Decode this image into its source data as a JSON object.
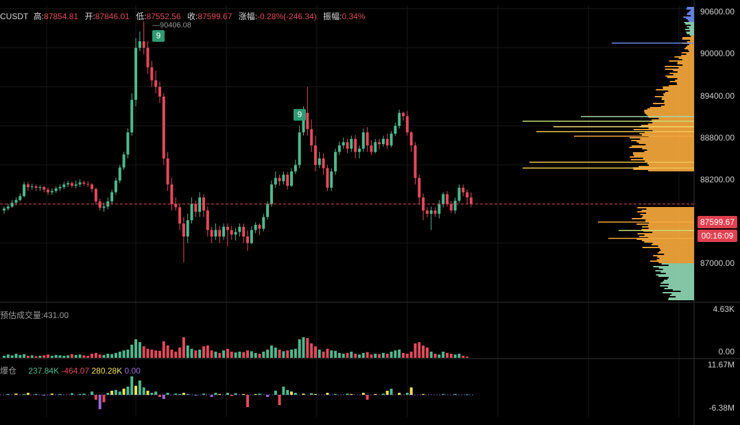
{
  "header": {
    "symbol": "CUSDT",
    "high_label": "高:",
    "high": "87854.81",
    "open_label": "开:",
    "open": "87846.01",
    "low_label": "低:",
    "low": "87552.56",
    "close_label": "收:",
    "close": "87599.67",
    "change_label": "涨幅:",
    "change": "-0.28%(-246.34)",
    "amplitude_label": "振幅:",
    "amplitude": "0.34%"
  },
  "price_axis": {
    "labels": [
      "90600.00",
      "90000.00",
      "89400.00",
      "88800.00",
      "88200.00",
      "87000.00"
    ],
    "current_price": "87599.67",
    "countdown": "00:16:09",
    "high_marker": "90406.08"
  },
  "td_badges": [
    "9",
    "9"
  ],
  "volume_pane": {
    "label": "预估成交量:431.00",
    "axis_top": "4.63K",
    "axis_bottom": "0.00"
  },
  "oi_pane": {
    "label": "爆仓",
    "v1": "237.84K",
    "v2": "-464.07",
    "v3": "280.28K",
    "v4": "0.00",
    "axis_top": "11.67M",
    "axis_bottom": "-6.38M"
  },
  "colors": {
    "up": "#4fb88f",
    "down": "#e24a5a",
    "profile": "#f5a73c",
    "tag": "#e0404f"
  },
  "chart_data": {
    "type": "candlestick",
    "ylim": [
      86100,
      90650
    ],
    "candles": [
      [
        87500,
        87530,
        87450,
        87560
      ],
      [
        87530,
        87560,
        87500,
        87600
      ],
      [
        87560,
        87620,
        87540,
        87660
      ],
      [
        87620,
        87660,
        87580,
        87700
      ],
      [
        87660,
        87720,
        87640,
        87760
      ],
      [
        87720,
        87900,
        87700,
        87940
      ],
      [
        87900,
        87860,
        87800,
        87940
      ],
      [
        87860,
        87870,
        87820,
        87910
      ],
      [
        87870,
        87850,
        87800,
        87900
      ],
      [
        87850,
        87860,
        87800,
        87890
      ],
      [
        87860,
        87820,
        87780,
        87880
      ],
      [
        87820,
        87780,
        87740,
        87850
      ],
      [
        87780,
        87800,
        87740,
        87840
      ],
      [
        87800,
        87840,
        87770,
        87870
      ],
      [
        87840,
        87860,
        87800,
        87900
      ],
      [
        87860,
        87900,
        87830,
        87940
      ],
      [
        87900,
        87920,
        87860,
        87960
      ],
      [
        87920,
        87880,
        87850,
        87950
      ],
      [
        87880,
        87900,
        87840,
        87960
      ],
      [
        87900,
        87930,
        87860,
        87980
      ],
      [
        87930,
        87910,
        87880,
        87960
      ],
      [
        87910,
        87900,
        87860,
        87950
      ],
      [
        87900,
        87830,
        87780,
        87920
      ],
      [
        87830,
        87640,
        87600,
        87850
      ],
      [
        87640,
        87540,
        87500,
        87680
      ],
      [
        87540,
        87560,
        87480,
        87620
      ],
      [
        87560,
        87640,
        87520,
        87700
      ],
      [
        87640,
        87780,
        87600,
        87820
      ],
      [
        87780,
        87960,
        87740,
        88000
      ],
      [
        87960,
        88160,
        87920,
        88200
      ],
      [
        88160,
        88360,
        88120,
        88400
      ],
      [
        88360,
        88700,
        88300,
        88760
      ],
      [
        88700,
        89200,
        88650,
        89300
      ],
      [
        89200,
        90000,
        89100,
        90150
      ],
      [
        90000,
        90100,
        89950,
        90250
      ],
      [
        90100,
        90000,
        89900,
        90406
      ],
      [
        90000,
        89700,
        89600,
        90100
      ],
      [
        89700,
        89500,
        89400,
        89800
      ],
      [
        89500,
        89400,
        89300,
        89650
      ],
      [
        89400,
        89250,
        89150,
        89480
      ],
      [
        89250,
        88300,
        88200,
        89300
      ],
      [
        88300,
        87900,
        87800,
        88400
      ],
      [
        87900,
        87600,
        87500,
        88000
      ],
      [
        87600,
        87550,
        87500,
        87700
      ],
      [
        87550,
        87300,
        87200,
        87600
      ],
      [
        87300,
        87100,
        86700,
        87400
      ],
      [
        87100,
        87350,
        87000,
        87450
      ],
      [
        87350,
        87600,
        87300,
        87700
      ],
      [
        87600,
        87480,
        87400,
        87650
      ],
      [
        87480,
        87700,
        87400,
        87780
      ],
      [
        87700,
        87500,
        87400,
        87750
      ],
      [
        87500,
        87200,
        87100,
        87560
      ],
      [
        87200,
        87100,
        87000,
        87250
      ],
      [
        87100,
        87200,
        87050,
        87300
      ],
      [
        87200,
        87100,
        87000,
        87260
      ],
      [
        87100,
        87250,
        87050,
        87300
      ],
      [
        87250,
        87200,
        86950,
        87300
      ],
      [
        87200,
        87130,
        87050,
        87260
      ],
      [
        87130,
        87170,
        87040,
        87230
      ],
      [
        87170,
        87250,
        87100,
        87300
      ],
      [
        87250,
        87100,
        87000,
        87300
      ],
      [
        87100,
        87000,
        86880,
        87200
      ],
      [
        87000,
        87200,
        86980,
        87260
      ],
      [
        87200,
        87280,
        87150,
        87320
      ],
      [
        87280,
        87220,
        87120,
        87300
      ],
      [
        87220,
        87400,
        87180,
        87450
      ],
      [
        87400,
        87600,
        87360,
        87640
      ],
      [
        87600,
        87900,
        87560,
        87960
      ],
      [
        87900,
        88000,
        87850,
        88100
      ],
      [
        88000,
        87950,
        87880,
        88050
      ],
      [
        87950,
        88050,
        87900,
        88100
      ],
      [
        88050,
        87880,
        87820,
        88090
      ],
      [
        87880,
        88100,
        87860,
        88150
      ],
      [
        88100,
        88200,
        88060,
        88280
      ],
      [
        88200,
        88700,
        88150,
        88800
      ],
      [
        88700,
        89000,
        88650,
        89100
      ],
      [
        89000,
        88750,
        88650,
        89400
      ],
      [
        88750,
        88500,
        88400,
        88900
      ],
      [
        88500,
        88200,
        88100,
        88650
      ],
      [
        88200,
        88300,
        88150,
        88400
      ],
      [
        88300,
        88150,
        88050,
        88380
      ],
      [
        88150,
        87850,
        87800,
        88200
      ],
      [
        87850,
        88100,
        87800,
        88150
      ],
      [
        88100,
        88400,
        88050,
        88450
      ],
      [
        88400,
        88500,
        88350,
        88560
      ],
      [
        88500,
        88550,
        88450,
        88620
      ],
      [
        88550,
        88450,
        88380,
        88600
      ],
      [
        88450,
        88600,
        88400,
        88650
      ],
      [
        88600,
        88400,
        88300,
        88660
      ],
      [
        88400,
        88450,
        88300,
        88500
      ],
      [
        88450,
        88700,
        88400,
        88760
      ],
      [
        88700,
        88500,
        88400,
        88780
      ],
      [
        88500,
        88400,
        88350,
        88580
      ],
      [
        88400,
        88550,
        88380,
        88600
      ],
      [
        88550,
        88520,
        88440,
        88600
      ],
      [
        88520,
        88600,
        88480,
        88650
      ],
      [
        88600,
        88500,
        88450,
        88680
      ],
      [
        88500,
        88680,
        88470,
        88720
      ],
      [
        88680,
        88800,
        88650,
        88850
      ],
      [
        88800,
        89000,
        88760,
        89050
      ],
      [
        89000,
        88950,
        88880,
        89020
      ],
      [
        88950,
        88700,
        88650,
        89030
      ],
      [
        88700,
        88500,
        88400,
        88720
      ],
      [
        88500,
        88000,
        87900,
        88550
      ],
      [
        88000,
        87700,
        87600,
        88050
      ],
      [
        87700,
        87500,
        87350,
        87760
      ],
      [
        87500,
        87450,
        87400,
        87550
      ],
      [
        87450,
        87500,
        87200,
        87560
      ],
      [
        87500,
        87450,
        87400,
        87550
      ],
      [
        87450,
        87600,
        87380,
        87660
      ],
      [
        87600,
        87750,
        87550,
        87780
      ],
      [
        87750,
        87600,
        87560,
        87800
      ],
      [
        87600,
        87500,
        87460,
        87650
      ],
      [
        87500,
        87650,
        87450,
        87700
      ],
      [
        87650,
        87850,
        87620,
        87900
      ],
      [
        87850,
        87780,
        87720,
        87900
      ],
      [
        87780,
        87700,
        87600,
        87820
      ],
      [
        87700,
        87600,
        87550,
        87780
      ]
    ],
    "volume": [
      0.05,
      0.08,
      0.06,
      0.1,
      0.07,
      0.09,
      0.05,
      0.06,
      0.04,
      0.05,
      0.06,
      0.08,
      0.05,
      0.07,
      0.06,
      0.05,
      0.06,
      0.09,
      0.07,
      0.08,
      0.06,
      0.05,
      0.1,
      0.12,
      0.08,
      0.07,
      0.1,
      0.09,
      0.12,
      0.15,
      0.18,
      0.2,
      0.32,
      0.45,
      0.38,
      0.28,
      0.22,
      0.2,
      0.18,
      0.17,
      0.4,
      0.3,
      0.2,
      0.15,
      0.25,
      0.5,
      0.3,
      0.22,
      0.18,
      0.2,
      0.28,
      0.3,
      0.18,
      0.15,
      0.12,
      0.18,
      0.22,
      0.15,
      0.13,
      0.15,
      0.14,
      0.18,
      0.16,
      0.12,
      0.1,
      0.15,
      0.2,
      0.3,
      0.25,
      0.2,
      0.16,
      0.18,
      0.2,
      0.22,
      0.45,
      0.5,
      0.48,
      0.35,
      0.28,
      0.2,
      0.15,
      0.22,
      0.18,
      0.17,
      0.12,
      0.1,
      0.12,
      0.15,
      0.1,
      0.08,
      0.12,
      0.14,
      0.08,
      0.1,
      0.09,
      0.12,
      0.1,
      0.15,
      0.18,
      0.2,
      0.12,
      0.1,
      0.15,
      0.35,
      0.38,
      0.3,
      0.25,
      0.15,
      0.1,
      0.08,
      0.15,
      0.12,
      0.1,
      0.08,
      0.1,
      0.05,
      0.03
    ],
    "oi": [
      0.0,
      0.02,
      0.0,
      0.03,
      0.0,
      0.02,
      0.05,
      0.0,
      0.02,
      0.0,
      -0.02,
      0.0,
      0.03,
      0.0,
      0.02,
      0.0,
      0.0,
      0.04,
      0.0,
      0.02,
      0.03,
      0.0,
      0.08,
      -0.12,
      -0.35,
      -0.18,
      0.05,
      0.1,
      0.12,
      0.08,
      0.15,
      0.2,
      0.45,
      0.22,
      0.35,
      0.18,
      0.1,
      0.05,
      0.08,
      -0.05,
      -0.1,
      0.05,
      0.0,
      0.03,
      0.02,
      0.05,
      0.02,
      0.0,
      -0.02,
      0.0,
      0.03,
      0.0,
      -0.05,
      0.05,
      0.02,
      0.0,
      0.05,
      -0.03,
      0.04,
      0.0,
      0.02,
      -0.3,
      0.0,
      0.02,
      0.03,
      0.0,
      -0.05,
      0.0,
      0.1,
      -0.25,
      0.2,
      0.12,
      0.08,
      0.05,
      0.0,
      0.03,
      0.0,
      0.04,
      0.02,
      0.0,
      0.0,
      0.05,
      0.0,
      0.02,
      0.0,
      0.0,
      0.03,
      0.02,
      0.0,
      0.0,
      0.05,
      -0.12,
      0.0,
      0.02,
      0.0,
      0.03,
      0.1,
      0.15,
      0.0,
      0.05,
      0.0,
      0.05,
      0.18,
      0.0,
      0.0,
      0.02,
      0.0,
      0.0,
      0.0,
      0.0,
      0.02,
      0.0,
      0.0,
      0.02,
      0.0,
      0.0,
      0.01
    ]
  }
}
